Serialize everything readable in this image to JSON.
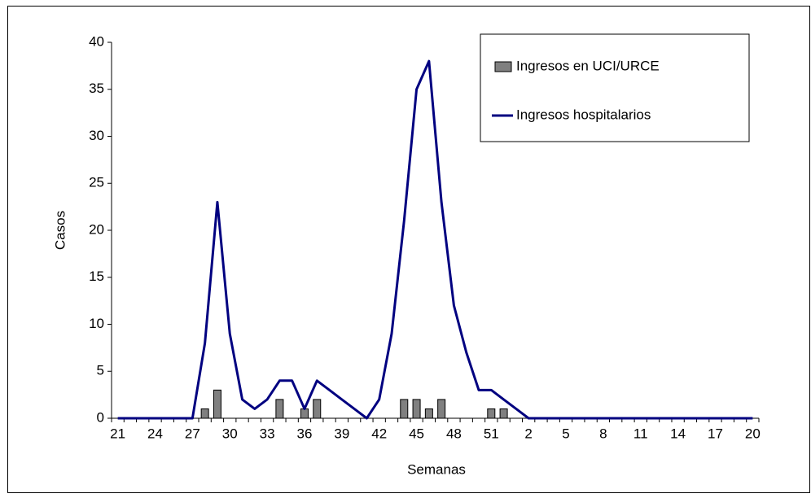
{
  "chart_data": {
    "type": "bar-line",
    "x_label": "Semanas",
    "y_label": "Casos",
    "categories": [
      "21",
      null,
      null,
      "24",
      null,
      null,
      "27",
      null,
      null,
      "30",
      null,
      null,
      "33",
      null,
      null,
      "36",
      null,
      null,
      "39",
      null,
      null,
      "42",
      null,
      null,
      "45",
      null,
      null,
      "48",
      null,
      null,
      "51",
      null,
      null,
      "2",
      null,
      null,
      "5",
      null,
      null,
      "8",
      null,
      null,
      "11",
      null,
      null,
      "14",
      null,
      null,
      "17",
      null,
      null,
      "20"
    ],
    "series": [
      {
        "name": "Ingresos en UCI/URCE",
        "type": "bar",
        "color": "#808080",
        "values": [
          0,
          0,
          0,
          0,
          0,
          0,
          0,
          1,
          3,
          0,
          0,
          0,
          0,
          2,
          0,
          1,
          2,
          0,
          0,
          0,
          0,
          0,
          0,
          2,
          2,
          1,
          2,
          0,
          0,
          0,
          1,
          1,
          0,
          0,
          0,
          0,
          0,
          0,
          0,
          0,
          0,
          0,
          0,
          0,
          0,
          0,
          0,
          0,
          0,
          0,
          0,
          0
        ]
      },
      {
        "name": "Ingresos hospitalarios",
        "type": "line",
        "color": "#000080",
        "values": [
          0,
          0,
          0,
          0,
          0,
          0,
          0,
          8,
          23,
          9,
          2,
          1,
          2,
          4,
          4,
          1,
          4,
          3,
          2,
          1,
          0,
          2,
          9,
          21,
          35,
          38,
          23,
          12,
          7,
          3,
          3,
          2,
          1,
          0,
          0,
          0,
          0,
          0,
          0,
          0,
          0,
          0,
          0,
          0,
          0,
          0,
          0,
          0,
          0,
          0,
          0,
          0
        ]
      }
    ],
    "ylim": [
      0,
      40
    ],
    "yticks": [
      0,
      5,
      10,
      15,
      20,
      25,
      30,
      35,
      40
    ],
    "legend": "top-right"
  }
}
